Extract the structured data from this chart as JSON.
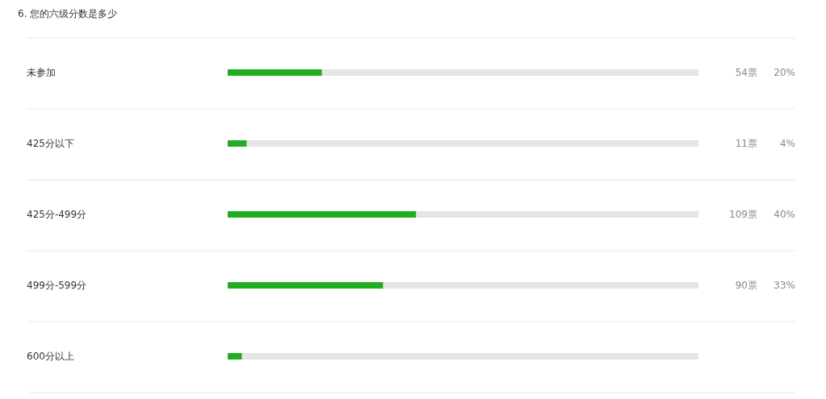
{
  "chart_data": {
    "type": "bar",
    "orientation": "horizontal",
    "title": "6. 您的六级分数是多少",
    "categories": [
      "未参加",
      "425分以下",
      "425分-499分",
      "499分-599分",
      "600分以上"
    ],
    "values": [
      20,
      4,
      40,
      33,
      3
    ],
    "color": "#22ac22",
    "xlim": [
      0,
      100
    ],
    "value_labels": [
      "20%",
      "4%",
      "40%",
      "33%",
      null
    ],
    "annotations": [
      "54票",
      "11票",
      "109票",
      "90票"
    ],
    "grid": "y"
  }
}
